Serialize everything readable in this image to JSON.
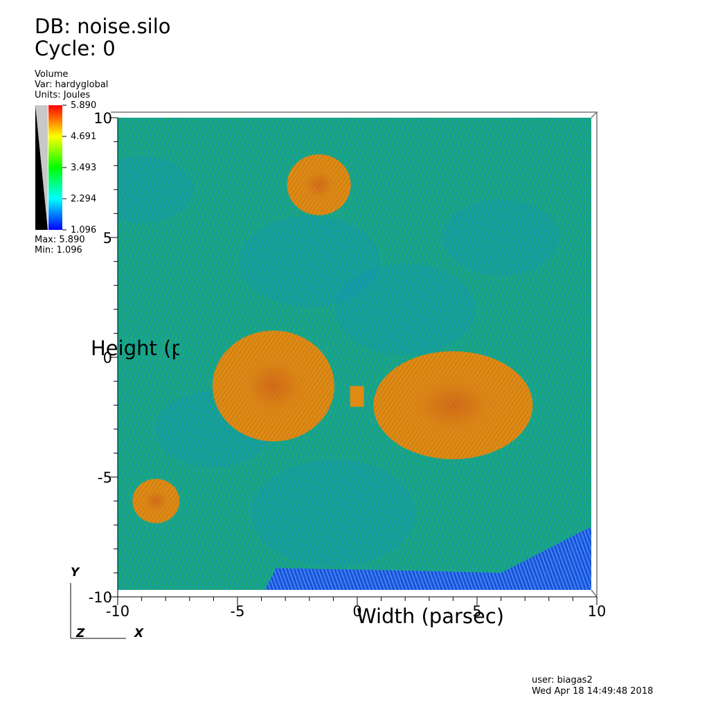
{
  "header": {
    "db_label": "DB: noise.silo",
    "cycle_label": "Cycle: 0"
  },
  "legend": {
    "plot_type": "Volume",
    "var_label": "Var: hardyglobal",
    "units_label": "Units: Joules",
    "ticks": [
      "5.890",
      "4.691",
      "3.493",
      "2.294",
      "1.096"
    ],
    "max_label": "Max:  5.890",
    "min_label": "Min:  1.096",
    "colormap": [
      "#ff0000",
      "#ffff00",
      "#00ff00",
      "#00ffff",
      "#0000ff"
    ]
  },
  "chart_data": {
    "type": "heatmap",
    "xlabel": "Width (parsec)",
    "ylabel": "Height (p",
    "xlim": [
      -10,
      10
    ],
    "ylim": [
      -10,
      10
    ],
    "x_ticks": [
      -10,
      -5,
      0,
      5,
      10
    ],
    "y_ticks": [
      -10,
      -5,
      0,
      5,
      10
    ],
    "x_tick_labels": [
      "-10",
      "-5",
      "0",
      "5",
      "10"
    ],
    "y_tick_labels": [
      "-10",
      "-5",
      "0",
      "5",
      "10"
    ],
    "value_range": [
      1.096,
      5.89
    ],
    "features": [
      {
        "name": "hot-blob-left",
        "x": -3.5,
        "y": -1.2,
        "value": 4.9
      },
      {
        "name": "hot-blob-right",
        "x": 4.0,
        "y": -2.0,
        "value": 4.8
      },
      {
        "name": "hot-blob-top",
        "x": -1.6,
        "y": 7.2,
        "value": 4.6
      },
      {
        "name": "hot-blob-bottom-left",
        "x": -8.4,
        "y": -6.0,
        "value": 4.6
      },
      {
        "name": "cold-region-bottom",
        "x": 6.0,
        "y": -9.0,
        "value": 1.5
      }
    ],
    "background_value": 3.1,
    "grid": false
  },
  "triad": {
    "y_label": "Y",
    "x_label": "X",
    "z_label": "Z"
  },
  "footer": {
    "user_label": "user: biagas2",
    "date_label": "Wed Apr 18 14:49:48 2018"
  }
}
